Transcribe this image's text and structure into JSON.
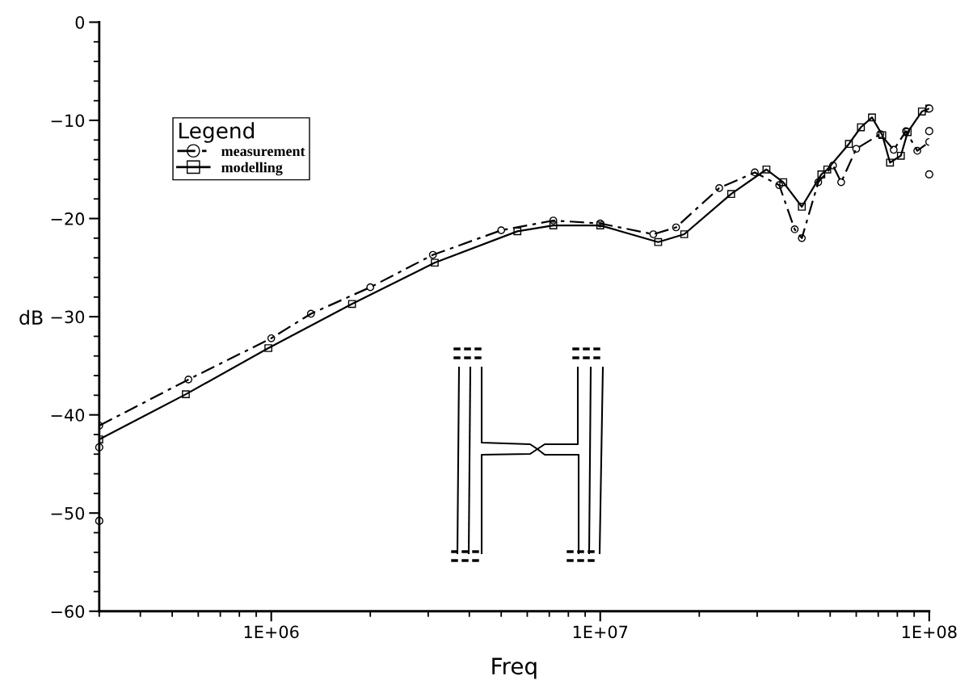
{
  "chart_data": {
    "type": "line",
    "xlabel": "Freq",
    "ylabel": "dB",
    "log": "x",
    "legend": "top left",
    "legend_title": "Legend",
    "grid": false,
    "xlim": [
      300000,
      100000000
    ],
    "xticks": [
      {
        "value": 1000000,
        "label": "1E+06"
      },
      {
        "value": 10000000,
        "label": "1E+07"
      },
      {
        "value": 100000000,
        "label": "1E+08"
      }
    ],
    "ylim": [
      -60,
      0
    ],
    "yticks": [
      0,
      -10,
      -20,
      -30,
      -40,
      -50,
      -60
    ],
    "series": [
      {
        "name": "measurement",
        "color": "#000000",
        "marker": "circle",
        "line_style": "dashed",
        "x": [
          300000,
          560000,
          1000000,
          1320000,
          2000000,
          3100000,
          5000000,
          7200000,
          10000000,
          14500000,
          17000000,
          23000000,
          29500000,
          35000000,
          39000000,
          41000000,
          46000000,
          51000000,
          54000000,
          60000000,
          71000000,
          78000000,
          85000000,
          92000000,
          100000000
        ],
        "values": [
          -41.1,
          -36.4,
          -32.2,
          -29.7,
          -27,
          -23.7,
          -21.2,
          -20.2,
          -20.5,
          -21.6,
          -20.9,
          -16.9,
          -15.3,
          -16.6,
          -21.1,
          -22,
          -16.3,
          -14.6,
          -16.3,
          -12.9,
          -11.4,
          -13,
          -11.1,
          -13.1,
          -12.2
        ]
      },
      {
        "name": "modelling",
        "color": "#000000",
        "marker": "square",
        "line_style": "solid",
        "x": [
          300000,
          550000,
          980000,
          1760000,
          3140000,
          5600000,
          7200000,
          10000000,
          15000000,
          18000000,
          25000000,
          32000000,
          36000000,
          41000000,
          47000000,
          49000000,
          57000000,
          62000000,
          67000000,
          72000000,
          76000000,
          82000000,
          86000000,
          95000000,
          100000000
        ],
        "values": [
          -42.5,
          -37.9,
          -33.2,
          -28.7,
          -24.5,
          -21.3,
          -20.7,
          -20.7,
          -22.4,
          -21.6,
          -17.5,
          -15,
          -16.3,
          -18.8,
          -15.5,
          -15,
          -12.4,
          -10.7,
          -9.7,
          -11.5,
          -14.3,
          -13.6,
          -11.2,
          -9.1,
          -8.8
        ]
      },
      {
        "type": "scatter",
        "color": "#000000",
        "marker": "circle",
        "x": [
          300000,
          300000,
          100000000,
          100000000,
          100000000
        ],
        "values": [
          -43.3,
          -50.8,
          -8.8,
          -11.1,
          -15.5
        ]
      }
    ]
  }
}
